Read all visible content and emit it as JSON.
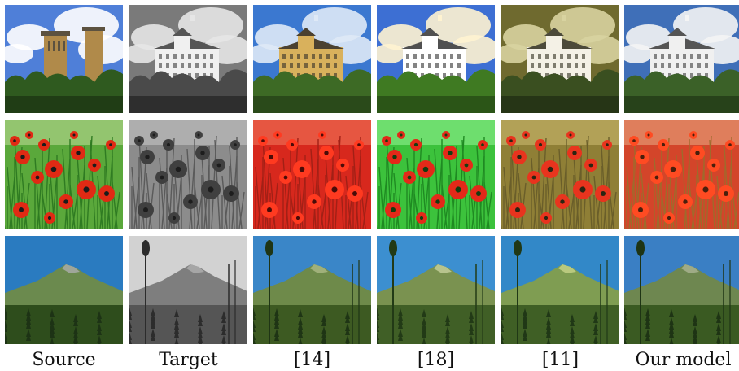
{
  "figure": {
    "columns": [
      {
        "label": "Source"
      },
      {
        "label": "Target"
      },
      {
        "label": "[14]"
      },
      {
        "label": "[18]"
      },
      {
        "label": "[11]"
      },
      {
        "label": "Our model"
      }
    ],
    "rows": [
      {
        "scene": "castle-landscape"
      },
      {
        "scene": "poppy-field"
      },
      {
        "scene": "mountain-forest"
      }
    ],
    "palettes": {
      "castle": [
        {
          "sky": "#4f7fd8",
          "cloud": "#ffffff",
          "building": "#b08a4a",
          "roof": "#5c5240",
          "trees": "#2f5a1f",
          "ground": "#203d15"
        },
        {
          "sky": "#7a7a7a",
          "cloud": "#e6e6e6",
          "building": "#f0f0f0",
          "roof": "#555555",
          "trees": "#4a4a4a",
          "ground": "#2e2e2e"
        },
        {
          "sky": "#3b78d0",
          "cloud": "#dfe9f6",
          "building": "#d9b15c",
          "roof": "#4b4130",
          "trees": "#3d6a25",
          "ground": "#2a4a1a"
        },
        {
          "sky": "#3d6fd3",
          "cloud": "#fff3d0",
          "building": "#ffffff",
          "roof": "#505050",
          "trees": "#3f7a22",
          "ground": "#2b5517"
        },
        {
          "sky": "#6f6a2f",
          "cloud": "#d8d3a0",
          "building": "#f4f1e6",
          "roof": "#4c4a3a",
          "trees": "#3a4f20",
          "ground": "#263516"
        },
        {
          "sky": "#3f6fb8",
          "cloud": "#f4f4f4",
          "building": "#f0f0f0",
          "roof": "#555555",
          "trees": "#3b6128",
          "ground": "#27421a"
        }
      ],
      "poppy": [
        {
          "field": "#5aa83b",
          "stem": "#2f7b22",
          "flower": "#e02a14",
          "dark": "#1b1b1b",
          "haze": "#b9d992"
        },
        {
          "field": "#8c8c8c",
          "stem": "#5a5a5a",
          "flower": "#404040",
          "dark": "#1d1d1d",
          "haze": "#c4c4c4"
        },
        {
          "field": "#d7281d",
          "stem": "#a22016",
          "flower": "#ff3a20",
          "dark": "#4a0c08",
          "haze": "#f0745a"
        },
        {
          "field": "#3cc23c",
          "stem": "#1f8a22",
          "flower": "#e32919",
          "dark": "#133d10",
          "haze": "#8ff08f"
        },
        {
          "field": "#8f7f36",
          "stem": "#6a5e2a",
          "flower": "#e8341e",
          "dark": "#2b2512",
          "haze": "#c9b86e"
        },
        {
          "field": "#d3452a",
          "stem": "#9e6b2c",
          "flower": "#ff4b22",
          "dark": "#4a1f0c",
          "haze": "#e7a57e"
        }
      ],
      "mountain": [
        {
          "sky": "#2a7bc0",
          "mountain": "#6b8a4e",
          "peak": "#9fa69a",
          "forest": "#2e4d1c",
          "tree": "#1d3315"
        },
        {
          "sky": "#d2d2d2",
          "mountain": "#7e7e7e",
          "peak": "#a6a6a6",
          "forest": "#555555",
          "tree": "#2c2c2c"
        },
        {
          "sky": "#3a86c8",
          "mountain": "#6e8a4a",
          "peak": "#a0b07a",
          "forest": "#3d5a22",
          "tree": "#1f3515"
        },
        {
          "sky": "#3c8fd0",
          "mountain": "#7a9250",
          "peak": "#b7c48d",
          "forest": "#405f26",
          "tree": "#223a16"
        },
        {
          "sky": "#3288c8",
          "mountain": "#7f9d52",
          "peak": "#b9c97e",
          "forest": "#3f5f25",
          "tree": "#203816"
        },
        {
          "sky": "#3a7fc4",
          "mountain": "#6e8750",
          "peak": "#9fab86",
          "forest": "#3a5a22",
          "tree": "#1e3414"
        }
      ]
    }
  }
}
